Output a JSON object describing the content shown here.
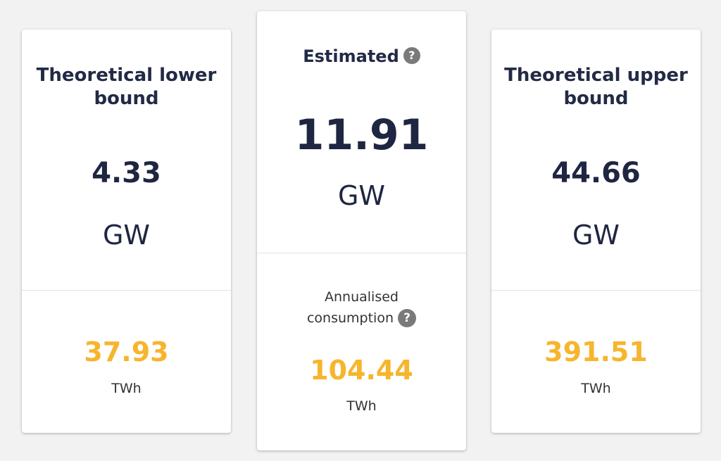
{
  "cards": {
    "lower": {
      "title_line1": "Theoretical lower",
      "title_line2": "bound",
      "power_value": "4.33",
      "power_unit": "GW",
      "energy_value": "37.93",
      "energy_unit": "TWh"
    },
    "estimated": {
      "title": "Estimated",
      "power_value": "11.91",
      "power_unit": "GW",
      "annual_label_line1": "Annualised",
      "annual_label_line2": "consumption",
      "energy_value": "104.44",
      "energy_unit": "TWh"
    },
    "upper": {
      "title_line1": "Theoretical upper",
      "title_line2": "bound",
      "power_value": "44.66",
      "power_unit": "GW",
      "energy_value": "391.51",
      "energy_unit": "TWh"
    }
  },
  "icons": {
    "help_glyph": "?",
    "help_icon_name": "help-circle-icon"
  },
  "colors": {
    "background": "#f2f2f2",
    "card": "#ffffff",
    "navy_text": "#222a45",
    "accent_orange": "#f7b52c",
    "help_icon_gray": "#7a7a7a"
  }
}
